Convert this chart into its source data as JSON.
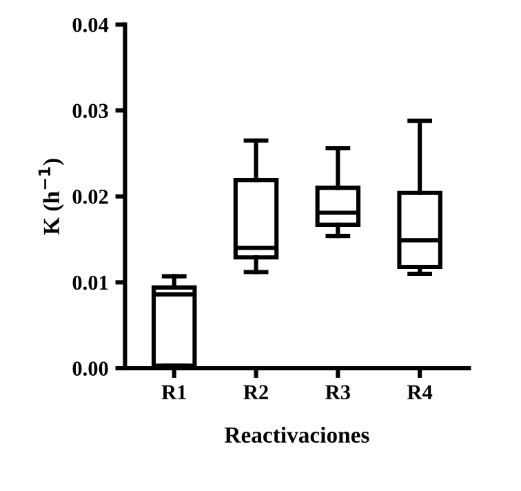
{
  "chart_data": {
    "type": "box",
    "xlabel": "Reactivaciones",
    "ylabel": "K (h$^{−1}$)",
    "categories": [
      "R1",
      "R2",
      "R3",
      "R4"
    ],
    "boxes": [
      {
        "low": 0.0003,
        "q1": 0.0003,
        "median": 0.0086,
        "q3": 0.0094,
        "high": 0.0107
      },
      {
        "low": 0.0112,
        "q1": 0.0129,
        "median": 0.014,
        "q3": 0.0219,
        "high": 0.0265
      },
      {
        "low": 0.0154,
        "q1": 0.0167,
        "median": 0.0181,
        "q3": 0.021,
        "high": 0.0256
      },
      {
        "low": 0.011,
        "q1": 0.0118,
        "median": 0.0149,
        "q3": 0.0204,
        "high": 0.0288
      }
    ],
    "color": "#000000",
    "ylim": [
      0,
      0.04
    ],
    "yticks": [
      {
        "value": 0,
        "label": "0.00"
      },
      0.01,
      0.02,
      0.03,
      0.04
    ],
    "grid": false
  }
}
